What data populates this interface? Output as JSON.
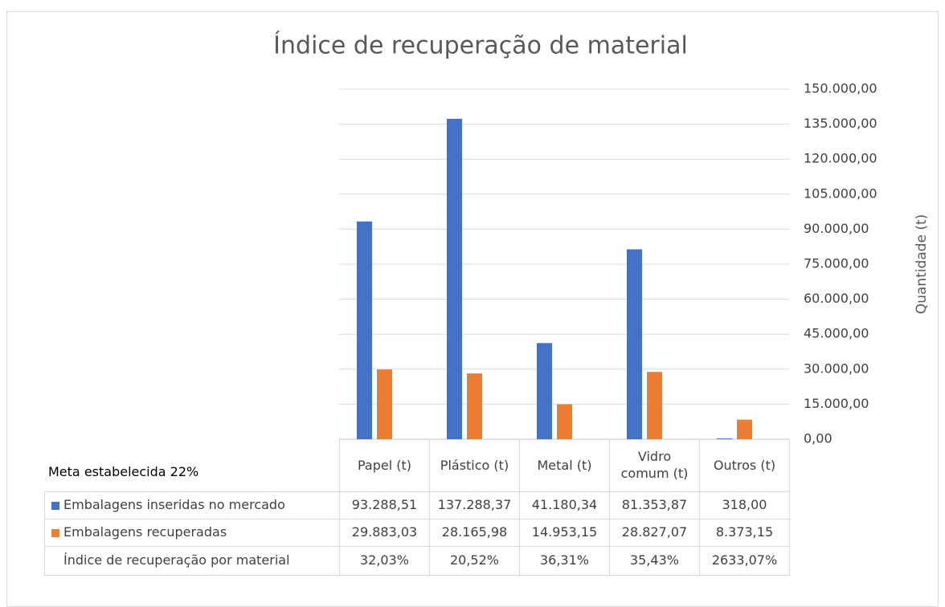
{
  "chart_data": {
    "type": "bar",
    "title": "Índice de recuperação de material",
    "y_axis_label": "Quantidade (t)",
    "annotation": "Meta estabelecida 22%",
    "categories": [
      "Papel (t)",
      "Plástico (t)",
      "Metal (t)",
      "Vidro comum (t)",
      "Outros (t)"
    ],
    "series": [
      {
        "name": "Embalagens inseridas no mercado",
        "color": "#4472c4",
        "values": [
          93288.51,
          137288.37,
          41180.34,
          81353.87,
          318
        ],
        "value_labels": [
          "93.288,51",
          "137.288,37",
          "41.180,34",
          "81.353,87",
          "318,00"
        ]
      },
      {
        "name": "Embalagens recuperadas",
        "color": "#ed7d31",
        "values": [
          29883.03,
          28165.98,
          14953.15,
          28827.07,
          8373.15
        ],
        "value_labels": [
          "29.883,03",
          "28.165,98",
          "14.953,15",
          "28.827,07",
          "8.373,15"
        ]
      }
    ],
    "recovery_index": {
      "name": "Índice de recuperação por material",
      "values": [
        32.03,
        20.52,
        36.31,
        35.43,
        2633.07
      ],
      "value_labels": [
        "32,03%",
        "20,52%",
        "36,31%",
        "35,43%",
        "2633,07%"
      ]
    },
    "ylim": [
      0,
      150000
    ],
    "yticks": [
      {
        "value": 0,
        "label": "0,00"
      },
      {
        "value": 15000,
        "label": "15.000,00"
      },
      {
        "value": 30000,
        "label": "30.000,00"
      },
      {
        "value": 45000,
        "label": "45.000,00"
      },
      {
        "value": 60000,
        "label": "60.000,00"
      },
      {
        "value": 75000,
        "label": "75.000,00"
      },
      {
        "value": 90000,
        "label": "90.000,00"
      },
      {
        "value": 105000,
        "label": "105.000,00"
      },
      {
        "value": 120000,
        "label": "120.000,00"
      },
      {
        "value": 135000,
        "label": "135.000,00"
      },
      {
        "value": 150000,
        "label": "150.000,00"
      }
    ],
    "grid": true
  }
}
